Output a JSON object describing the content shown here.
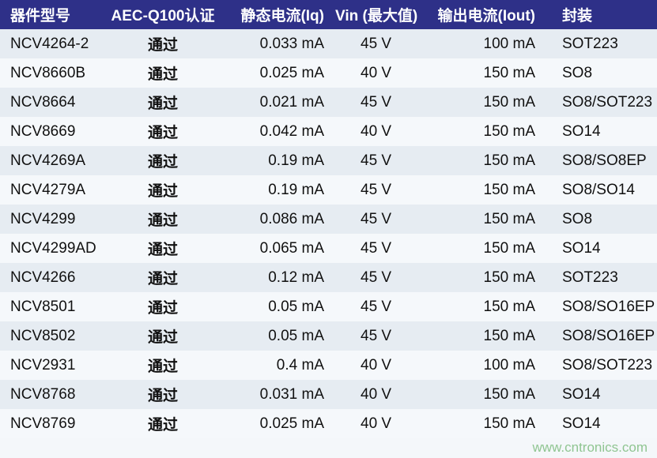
{
  "headers": [
    "器件型号",
    "AEC-Q100认证",
    "静态电流(Iq)",
    "Vin (最大值)",
    "输出电流(Iout)",
    "封装"
  ],
  "rows": [
    [
      "NCV4264-2",
      "通过",
      "0.033 mA",
      "45 V",
      "100 mA",
      "SOT223"
    ],
    [
      "NCV8660B",
      "通过",
      "0.025 mA",
      "40 V",
      "150 mA",
      "SO8"
    ],
    [
      "NCV8664",
      "通过",
      "0.021 mA",
      "45 V",
      "150 mA",
      "SO8/SOT223"
    ],
    [
      "NCV8669",
      "通过",
      "0.042 mA",
      "40 V",
      "150 mA",
      "SO14"
    ],
    [
      "NCV4269A",
      "通过",
      "0.19 mA",
      "45 V",
      "150 mA",
      "SO8/SO8EP"
    ],
    [
      "NCV4279A",
      "通过",
      "0.19 mA",
      "45 V",
      "150 mA",
      "SO8/SO14"
    ],
    [
      "NCV4299",
      "通过",
      "0.086 mA",
      "45 V",
      "150 mA",
      "SO8"
    ],
    [
      "NCV4299AD",
      "通过",
      "0.065 mA",
      "45 V",
      "150 mA",
      "SO14"
    ],
    [
      "NCV4266",
      "通过",
      "0.12 mA",
      "45 V",
      "150 mA",
      "SOT223"
    ],
    [
      "NCV8501",
      "通过",
      "0.05 mA",
      "45 V",
      "150 mA",
      "SO8/SO16EP"
    ],
    [
      "NCV8502",
      "通过",
      "0.05 mA",
      "45 V",
      "150 mA",
      "SO8/SO16EP"
    ],
    [
      "NCV2931",
      "通过",
      "0.4 mA",
      "40 V",
      "100 mA",
      "SO8/SOT223"
    ],
    [
      "NCV8768",
      "通过",
      "0.031 mA",
      "40 V",
      "150 mA",
      "SO14"
    ],
    [
      "NCV8769",
      "通过",
      "0.025 mA",
      "40 V",
      "150 mA",
      "SO14"
    ]
  ],
  "watermark": "www.cntronics.com",
  "colors": {
    "header_bg": "#2e3088",
    "row_odd": "#e6ecf2",
    "row_even": "#f5f8fb"
  }
}
